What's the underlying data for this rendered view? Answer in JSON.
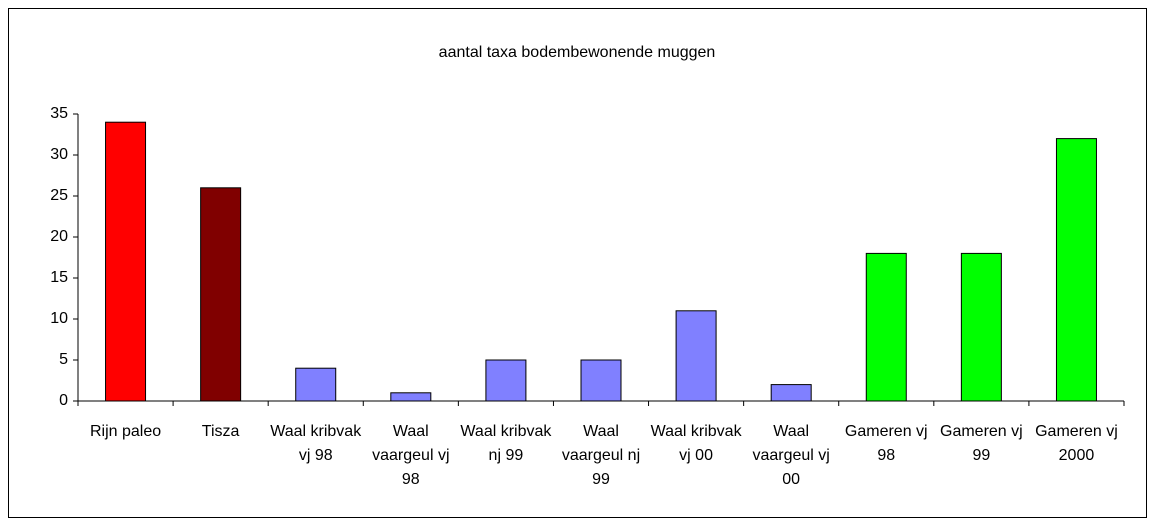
{
  "chart_data": {
    "type": "bar",
    "title": "aantal taxa bodembewonende muggen",
    "categories": [
      "Rijn paleo",
      "Tisza",
      "Waal kribvak vj 98",
      "Waal vaargeul vj 98",
      "Waal kribvak nj 99",
      "Waal vaargeul nj 99",
      "Waal kribvak vj 00",
      "Waal vaargeul vj 00",
      "Gameren vj 98",
      "Gameren vj 99",
      "Gameren vj 2000"
    ],
    "values": [
      34,
      26,
      4,
      1,
      5,
      5,
      11,
      2,
      18,
      18,
      32
    ],
    "colors": [
      "#ff0000",
      "#800000",
      "#8080ff",
      "#8080ff",
      "#8080ff",
      "#8080ff",
      "#8080ff",
      "#8080ff",
      "#00ff00",
      "#00ff00",
      "#00ff00"
    ],
    "ylim": [
      0,
      35
    ],
    "yticks": [
      0,
      5,
      10,
      15,
      20,
      25,
      30,
      35
    ],
    "grid": false
  }
}
